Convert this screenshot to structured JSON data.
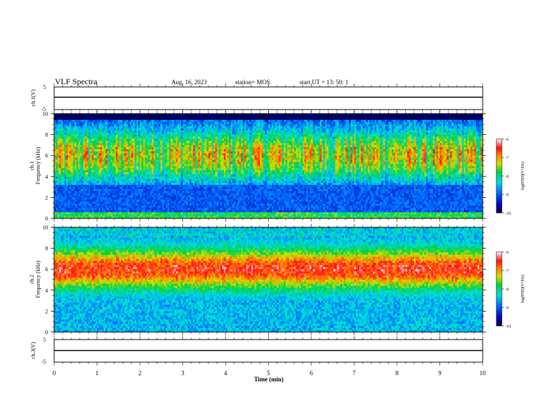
{
  "header": {
    "title": "VLF Spectra",
    "date": "Aug. 16, 2023",
    "station": "station= MOS",
    "start": "start  UT  =   13: 50: 1"
  },
  "chart_data": [
    {
      "type": "line",
      "ylabel": "ch.1(V)",
      "ylim": [
        -5,
        5
      ],
      "yticks": [
        "5",
        "-5"
      ],
      "x": [
        0,
        10
      ],
      "values": [
        0,
        0
      ]
    },
    {
      "type": "heatmap",
      "ylabel_channel": "ch.1",
      "ylabel": "Frequency  (kHz)",
      "ylim": [
        0,
        10
      ],
      "yticks": [
        "0",
        "2",
        "4",
        "6",
        "8",
        "10"
      ],
      "xlim": [
        0,
        10
      ],
      "band_center_khz": 6.0,
      "colorbar": {
        "label": "log(PSD)(V²/Hz)",
        "ticks": [
          "-6",
          "-7",
          "-8",
          "-9",
          "-10"
        ],
        "range": [
          -10,
          -6
        ]
      }
    },
    {
      "type": "heatmap",
      "ylabel_channel": "ch.2",
      "ylabel": "Frequency  (kHz)",
      "ylim": [
        0,
        10
      ],
      "yticks": [
        "0",
        "2",
        "4",
        "6",
        "8",
        "10"
      ],
      "xlim": [
        0,
        10
      ],
      "band_center_khz": 6.0,
      "colorbar": {
        "label": "log(PSD)(V²/Hz)",
        "ticks": [
          "-6",
          "-7",
          "-8",
          "-9",
          "-10"
        ],
        "range": [
          -10,
          -6
        ]
      }
    },
    {
      "type": "line",
      "ylabel": "ch.3(V)",
      "ylim": [
        -5,
        5
      ],
      "yticks": [
        "5",
        "-5"
      ],
      "x": [
        0,
        10
      ],
      "values": [
        0,
        0
      ]
    }
  ],
  "x_axis": {
    "label": "Time  (min)",
    "ticks": [
      "0",
      "1",
      "2",
      "3",
      "4",
      "5",
      "6",
      "7",
      "8",
      "9",
      "10"
    ],
    "range": [
      0,
      10
    ]
  }
}
